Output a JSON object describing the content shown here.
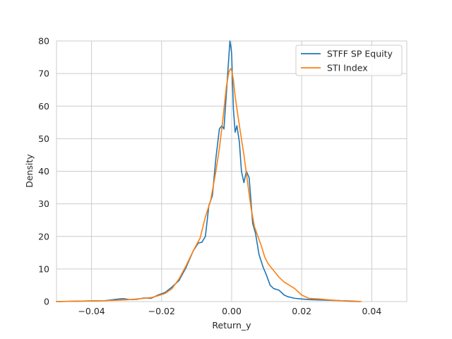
{
  "chart_data": {
    "type": "line",
    "title": "",
    "xlabel": "Return_y",
    "ylabel": "Density",
    "xlim": [
      -0.05,
      0.05
    ],
    "ylim": [
      0,
      80
    ],
    "xticks": [
      -0.04,
      -0.02,
      0.0,
      0.02,
      0.04
    ],
    "xtick_labels": [
      "−0.04",
      "−0.02",
      "0.00",
      "0.02",
      "0.04"
    ],
    "yticks": [
      0,
      10,
      20,
      30,
      40,
      50,
      60,
      70,
      80
    ],
    "ytick_labels": [
      "0",
      "10",
      "20",
      "30",
      "40",
      "50",
      "60",
      "70",
      "80"
    ],
    "grid": true,
    "legend_position": "top-right",
    "series": [
      {
        "name": "STFF SP Equity",
        "color": "#1f77b4",
        "x": [
          -0.05,
          -0.045,
          -0.04,
          -0.036,
          -0.033,
          -0.031,
          -0.029,
          -0.027,
          -0.025,
          -0.023,
          -0.021,
          -0.019,
          -0.017,
          -0.015,
          -0.013,
          -0.011,
          -0.0095,
          -0.0085,
          -0.0075,
          -0.0065,
          -0.0055,
          -0.0045,
          -0.0035,
          -0.0028,
          -0.0022,
          -0.0015,
          -0.001,
          -0.0005,
          -0.0002,
          0.0,
          0.0005,
          0.001,
          0.0015,
          0.0022,
          0.0028,
          0.0035,
          0.0042,
          0.005,
          0.0055,
          0.006,
          0.0068,
          0.0078,
          0.009,
          0.0098,
          0.011,
          0.012,
          0.0135,
          0.015,
          0.016,
          0.018,
          0.02,
          0.022,
          0.025,
          0.028,
          0.031,
          0.034,
          0.0365
        ],
        "y": [
          0,
          0.1,
          0.2,
          0.3,
          0.7,
          0.9,
          0.6,
          0.7,
          1.1,
          1.0,
          2.0,
          2.8,
          4.5,
          6.5,
          10.5,
          15.5,
          18.0,
          18.2,
          20.0,
          29.5,
          32.5,
          44.0,
          53.0,
          54.0,
          53.0,
          64.0,
          72.0,
          80.0,
          78.0,
          76.0,
          59.0,
          52.0,
          54.0,
          49.0,
          40.0,
          36.5,
          40.0,
          38.0,
          31.0,
          24.0,
          21.0,
          14.5,
          10.5,
          8.5,
          5.0,
          4.0,
          3.5,
          2.0,
          1.5,
          1.0,
          0.8,
          0.6,
          0.5,
          0.4,
          0.3,
          0.1,
          0.0
        ]
      },
      {
        "name": "STI Index",
        "color": "#ff7f0e",
        "x": [
          -0.05,
          -0.045,
          -0.04,
          -0.036,
          -0.033,
          -0.031,
          -0.029,
          -0.027,
          -0.025,
          -0.023,
          -0.021,
          -0.019,
          -0.017,
          -0.015,
          -0.013,
          -0.011,
          -0.009,
          -0.0075,
          -0.006,
          -0.0045,
          -0.0035,
          -0.0025,
          -0.0015,
          -0.0008,
          -0.0003,
          0.0,
          0.0005,
          0.001,
          0.0018,
          0.0025,
          0.0035,
          0.0045,
          0.0055,
          0.0065,
          0.0075,
          0.0085,
          0.0095,
          0.0105,
          0.012,
          0.0135,
          0.015,
          0.0165,
          0.018,
          0.02,
          0.022,
          0.025,
          0.028,
          0.031,
          0.034,
          0.037
        ],
        "y": [
          0,
          0.1,
          0.2,
          0.3,
          0.4,
          0.5,
          0.6,
          0.8,
          1.0,
          1.2,
          1.8,
          2.5,
          4.0,
          7.0,
          11.0,
          15.5,
          19.5,
          26.0,
          31.0,
          40.0,
          47.0,
          56.0,
          66.0,
          70.5,
          71.5,
          71.0,
          68.0,
          63.0,
          57.0,
          52.0,
          45.0,
          37.0,
          29.0,
          23.0,
          20.0,
          17.0,
          13.5,
          11.5,
          9.5,
          7.5,
          6.0,
          5.0,
          4.0,
          2.0,
          1.0,
          0.8,
          0.5,
          0.3,
          0.2,
          0.0
        ]
      }
    ]
  }
}
